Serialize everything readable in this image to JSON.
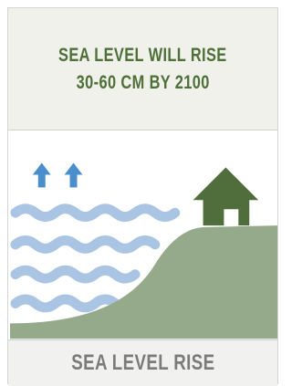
{
  "title": {
    "lines": [
      "SEA LEVEL WILL RISE",
      "30-60 CM BY 2100"
    ]
  },
  "footer": {
    "label": "SEA LEVEL RISE"
  }
}
